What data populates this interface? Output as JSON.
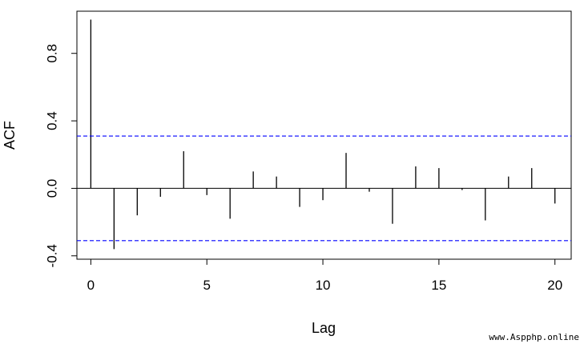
{
  "chart_data": {
    "type": "bar",
    "xlabel": "Lag",
    "ylabel": "ACF",
    "xlim": [
      -0.6,
      20.7
    ],
    "ylim": [
      -0.42,
      1.05
    ],
    "x_ticks": [
      0,
      5,
      10,
      15,
      20
    ],
    "y_ticks": [
      -0.4,
      0.0,
      0.4,
      0.8
    ],
    "y_tick_labels": [
      "-0.4",
      "0.0",
      "0.4",
      "0.8"
    ],
    "lags": [
      0,
      1,
      2,
      3,
      4,
      5,
      6,
      7,
      8,
      9,
      10,
      11,
      12,
      13,
      14,
      15,
      16,
      17,
      18,
      19,
      20
    ],
    "acf": [
      1.0,
      -0.36,
      -0.16,
      -0.05,
      0.22,
      -0.04,
      -0.18,
      0.1,
      0.07,
      -0.11,
      -0.07,
      0.21,
      -0.02,
      -0.21,
      0.13,
      0.12,
      -0.01,
      -0.19,
      0.07,
      0.12,
      -0.09
    ],
    "confidence_bound": 0.31,
    "colors": {
      "bars": "#000000",
      "confidence": "#0000ff",
      "zero_line": "#000000"
    }
  },
  "watermark": "www.Aspphp.online"
}
